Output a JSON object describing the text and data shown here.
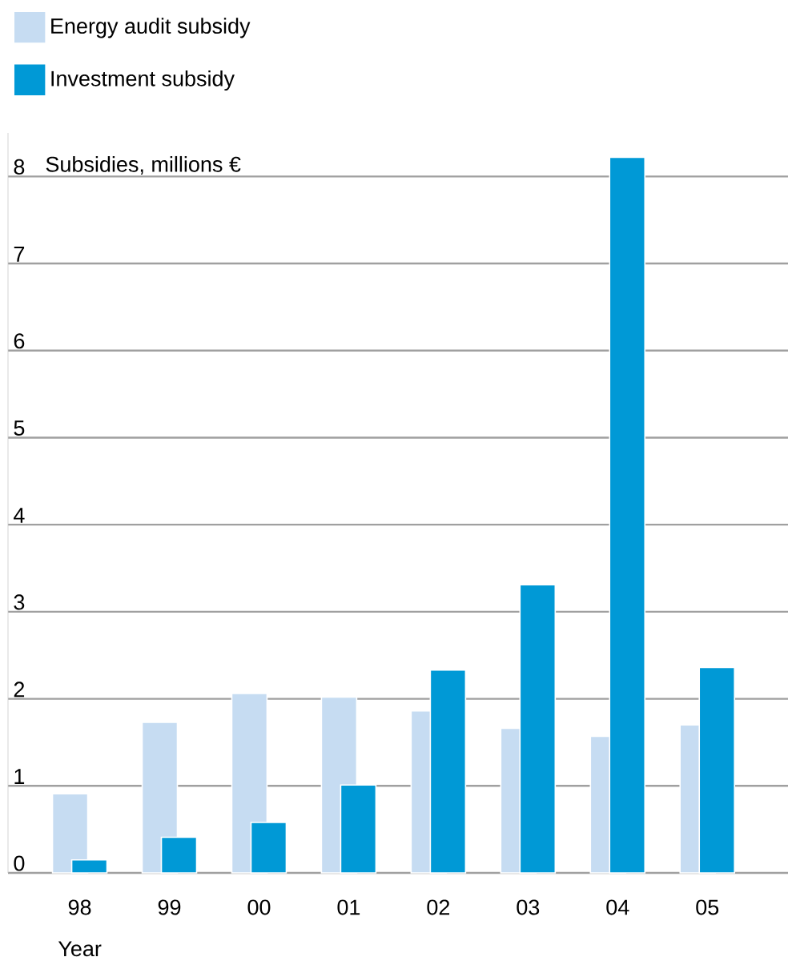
{
  "chart_data": {
    "type": "bar",
    "ylabel": "Subsidies, millions €",
    "xlabel": "Year",
    "categories": [
      "98",
      "99",
      "00",
      "01",
      "02",
      "03",
      "04",
      "05"
    ],
    "series": [
      {
        "name": "Energy audit subsidy",
        "color": "#c6dcf2",
        "values": [
          0.91,
          1.73,
          2.06,
          2.02,
          1.86,
          1.66,
          1.57,
          1.7
        ]
      },
      {
        "name": "Investment subsidy",
        "color": "#0099d6",
        "values": [
          0.15,
          0.41,
          0.58,
          1.01,
          2.33,
          3.31,
          8.22,
          2.36
        ]
      }
    ],
    "ylim": [
      0,
      8.5
    ],
    "yticks": [
      0,
      1,
      2,
      3,
      4,
      5,
      6,
      7,
      8
    ],
    "grid": "y",
    "legend": "top left"
  }
}
